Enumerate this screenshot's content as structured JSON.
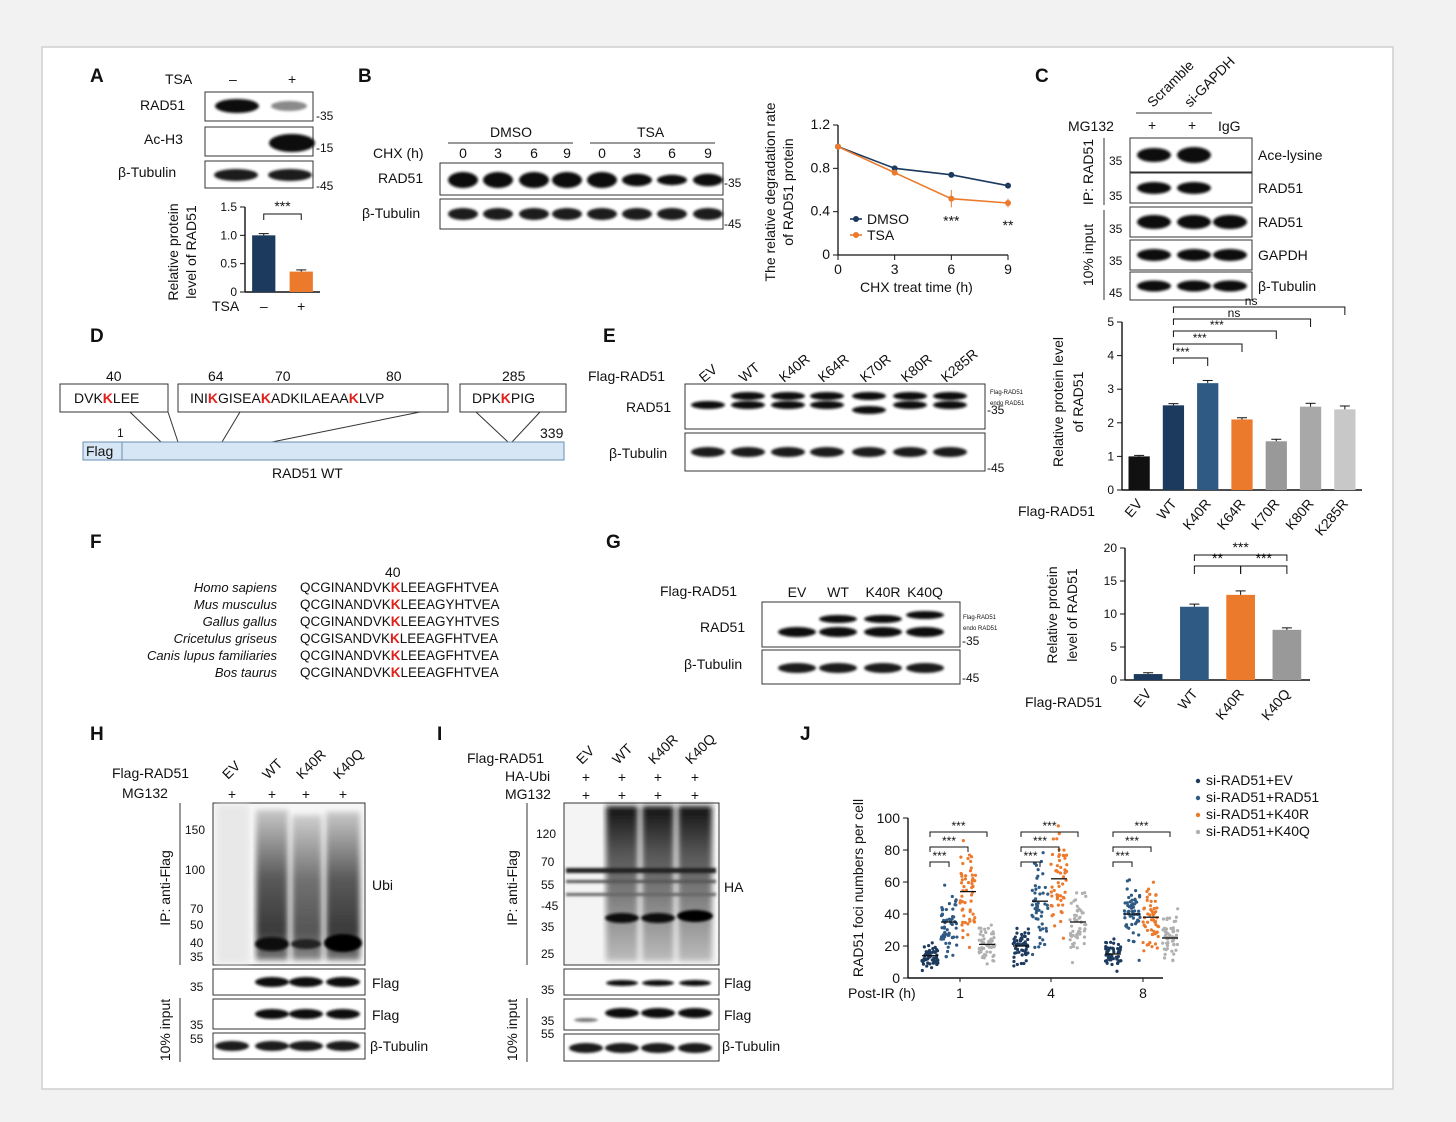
{
  "panels": {
    "A": "A",
    "B": "B",
    "C": "C",
    "D": "D",
    "E": "E",
    "F": "F",
    "G": "G",
    "H": "H",
    "I": "I",
    "J": "J"
  },
  "colors": {
    "navy": "#1c3a5e",
    "blue": "#2f5a84",
    "orange": "#ec7a2c",
    "grey": "#999999",
    "lightgrey": "#c8c8c8",
    "black": "#111111"
  },
  "mw": {
    "m15": "-15",
    "m35": "-35",
    "m45": "-45",
    "m55": "55",
    "m70": "70",
    "m100": "100",
    "m120": "120",
    "m150": "150",
    "m25": "25",
    "m40": "40",
    "m50": "50",
    "m35b": "35"
  },
  "panelA": {
    "tsa_label": "TSA",
    "minus": "–",
    "plus": "+",
    "row1": "RAD51",
    "row2": "Ac-H3",
    "row3": "β-Tubulin",
    "ylabel1": "Relative protein",
    "ylabel2": "level of RAD51",
    "sig": "***",
    "xlabel": "TSA",
    "chart_data": {
      "type": "bar",
      "categories": [
        "–",
        "+"
      ],
      "values": [
        1.0,
        0.36
      ],
      "errors": [
        0.03,
        0.03
      ],
      "ylim": [
        0,
        1.5
      ],
      "yticks": [
        "0",
        "0.5",
        "1.0",
        "1.5"
      ]
    }
  },
  "panelB": {
    "dmso": "DMSO",
    "tsa": "TSA",
    "chx": "CHX (h)",
    "times": [
      "0",
      "3",
      "6",
      "9",
      "0",
      "3",
      "6",
      "9"
    ],
    "row1": "RAD51",
    "row2": "β-Tubulin",
    "ylabel1": "The relative degradation rate",
    "ylabel2": "of RAD51 protein",
    "xlabel": "CHX treat time (h)",
    "sig6": "***",
    "sig9": "**",
    "chart_data": {
      "type": "line",
      "x": [
        0,
        3,
        6,
        9
      ],
      "series": [
        {
          "name": "DMSO",
          "values": [
            1.0,
            0.8,
            0.74,
            0.64
          ],
          "errors": [
            0,
            0.02,
            0.02,
            0.02
          ]
        },
        {
          "name": "TSA",
          "values": [
            1.0,
            0.76,
            0.52,
            0.48
          ],
          "errors": [
            0,
            0.02,
            0.08,
            0.04
          ]
        }
      ],
      "xticks": [
        "0",
        "3",
        "6",
        "9"
      ],
      "yticks": [
        "0",
        "0.4",
        "0.8",
        "1.2"
      ],
      "ylim": [
        0,
        1.2
      ]
    }
  },
  "panelC": {
    "lanes": [
      "Scramble",
      "si-GAPDH"
    ],
    "mg132": "MG132",
    "plus": "+",
    "igg": "IgG",
    "ip": "IP: RAD51",
    "input": "10% input",
    "rows": [
      "Ace-lysine",
      "RAD51",
      "RAD51",
      "GAPDH",
      "β-Tubulin"
    ]
  },
  "panelD": {
    "b1": [
      "DVK",
      "K",
      "LEE"
    ],
    "b2": [
      "INI",
      "K",
      "GISEA",
      "K",
      "ADKILAEAA",
      "K",
      "LVP"
    ],
    "b3": [
      "DPK",
      "K",
      "PIG"
    ],
    "n40": "40",
    "n64": "64",
    "n70": "70",
    "n80": "80",
    "n285": "285",
    "n1": "1",
    "n339": "339",
    "flag": "Flag",
    "name": "RAD51 WT"
  },
  "panelE": {
    "flag": "Flag-RAD51",
    "lanes": [
      "EV",
      "WT",
      "K40R",
      "K64R",
      "K70R",
      "K80R",
      "K285R"
    ],
    "row1": "RAD51",
    "row2": "β-Tubulin",
    "note1": "Flag-RAD51",
    "note2": "endo RAD51",
    "ylabel1": "Relative protein level",
    "ylabel2": "of RAD51",
    "sig": [
      "***",
      "***",
      "***",
      "ns",
      "ns"
    ],
    "chart_data": {
      "type": "bar",
      "categories": [
        "EV",
        "WT",
        "K40R",
        "K64R",
        "K70R",
        "K80R",
        "K285R"
      ],
      "values": [
        1.0,
        2.52,
        3.18,
        2.1,
        1.45,
        2.48,
        2.4
      ],
      "errors": [
        0.03,
        0.05,
        0.08,
        0.05,
        0.06,
        0.1,
        0.1
      ],
      "ylim": [
        0,
        5
      ],
      "yticks": [
        "0",
        "1",
        "2",
        "3",
        "4",
        "5"
      ]
    }
  },
  "panelF": {
    "pos": "40",
    "species": [
      "Homo sapiens",
      "Mus musculus",
      "Gallus gallus",
      "Cricetulus griseus",
      "Canis lupus familiaries",
      "Bos taurus"
    ],
    "pre": [
      "QCGINANDVK",
      "QCGINANDVK",
      "QCGINANDVK",
      "QCGISANDVK",
      "QCGINANDVK",
      "QCGINANDVK"
    ],
    "k": "K",
    "post": [
      "LEEAGFHTVEA",
      "LEEAGYHTVEA",
      "LEEAGYHTVES",
      "LEEAGFHTVEA",
      "LEEAGFHTVEA",
      "LEEAGFHTVEA"
    ]
  },
  "panelG": {
    "flag": "Flag-RAD51",
    "lanes": [
      "EV",
      "WT",
      "K40R",
      "K40Q"
    ],
    "row1": "RAD51",
    "row2": "β-Tubulin",
    "note1": "Flag-RAD51",
    "note2": "endo RAD51",
    "ylabel1": "Relative protein",
    "ylabel2": "level of RAD51",
    "sig": [
      "**",
      "***",
      "***"
    ],
    "chart_data": {
      "type": "bar",
      "categories": [
        "EV",
        "WT",
        "K40R",
        "K40Q"
      ],
      "values": [
        0.9,
        11.1,
        12.9,
        7.6
      ],
      "errors": [
        0.2,
        0.4,
        0.6,
        0.3
      ],
      "ylim": [
        0,
        20
      ],
      "yticks": [
        "0",
        "5",
        "10",
        "15",
        "20"
      ]
    }
  },
  "panelH": {
    "flag": "Flag-RAD51",
    "mg132": "MG132",
    "lanes": [
      "EV",
      "WT",
      "K40R",
      "K40Q"
    ],
    "plus": "+",
    "ip": "IP: anti-Flag",
    "input": "10% input",
    "ubi": "Ubi",
    "flagrow": "Flag",
    "tub": "β-Tubulin"
  },
  "panelI": {
    "flag": "Flag-RAD51",
    "haubi": "HA-Ubi",
    "mg132": "MG132",
    "lanes": [
      "EV",
      "WT",
      "K40R",
      "K40Q"
    ],
    "plus": "+",
    "ip": "IP: anti-Flag",
    "input": "10% input",
    "ha": "HA",
    "flagrow": "Flag",
    "tub": "β-Tubulin"
  },
  "panelJ": {
    "ylabel": "RAD51 foci numbers per cell",
    "xlabel": "Post-IR (h)",
    "sig": "***",
    "legend": [
      "si-RAD51+EV",
      "si-RAD51+RAD51",
      "si-RAD51+K40R",
      "si-RAD51+K40Q"
    ],
    "chart_data": {
      "type": "scatter",
      "categories": [
        "1",
        "4",
        "8"
      ],
      "series": [
        {
          "name": "si-RAD51+EV",
          "medians": [
            14,
            20,
            15
          ]
        },
        {
          "name": "si-RAD51+RAD51",
          "medians": [
            35,
            48,
            40
          ]
        },
        {
          "name": "si-RAD51+K40R",
          "medians": [
            54,
            62,
            38
          ]
        },
        {
          "name": "si-RAD51+K40Q",
          "medians": [
            21,
            35,
            25
          ]
        }
      ],
      "ylim": [
        0,
        100
      ],
      "yticks": [
        "0",
        "20",
        "40",
        "60",
        "80",
        "100"
      ]
    }
  }
}
